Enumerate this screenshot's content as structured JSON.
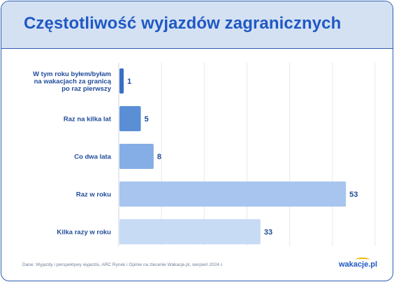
{
  "title": "Częstotliwość wyjazdów zagranicznych",
  "source_note": "Dane: Wyjazdy i perspektywy wyjazdu, ARC Rynek i Opinie na zlecenie Wakacje.pl, sierpień 2024 r.",
  "logo": "wakacje.pl",
  "colors": {
    "accent": "#1f58c4",
    "header_bg": "#d4e1f3",
    "border": "#2f5fb3"
  },
  "chart_data": {
    "type": "bar",
    "orientation": "horizontal",
    "categories": [
      [
        "W tym roku byłem/byłam",
        "na wakacjach za granicą",
        "po raz pierwszy"
      ],
      [
        "Raz na kilka lat"
      ],
      [
        "Co dwa lata"
      ],
      [
        "Raz w roku"
      ],
      [
        "Kilka razy w roku"
      ]
    ],
    "values": [
      1,
      5,
      8,
      53,
      33
    ],
    "bar_colors": [
      "#3a6fc6",
      "#5a8fd6",
      "#86aee6",
      "#a7c5ee",
      "#c8dbf5"
    ],
    "xlim": [
      0,
      60
    ],
    "grid": true
  }
}
